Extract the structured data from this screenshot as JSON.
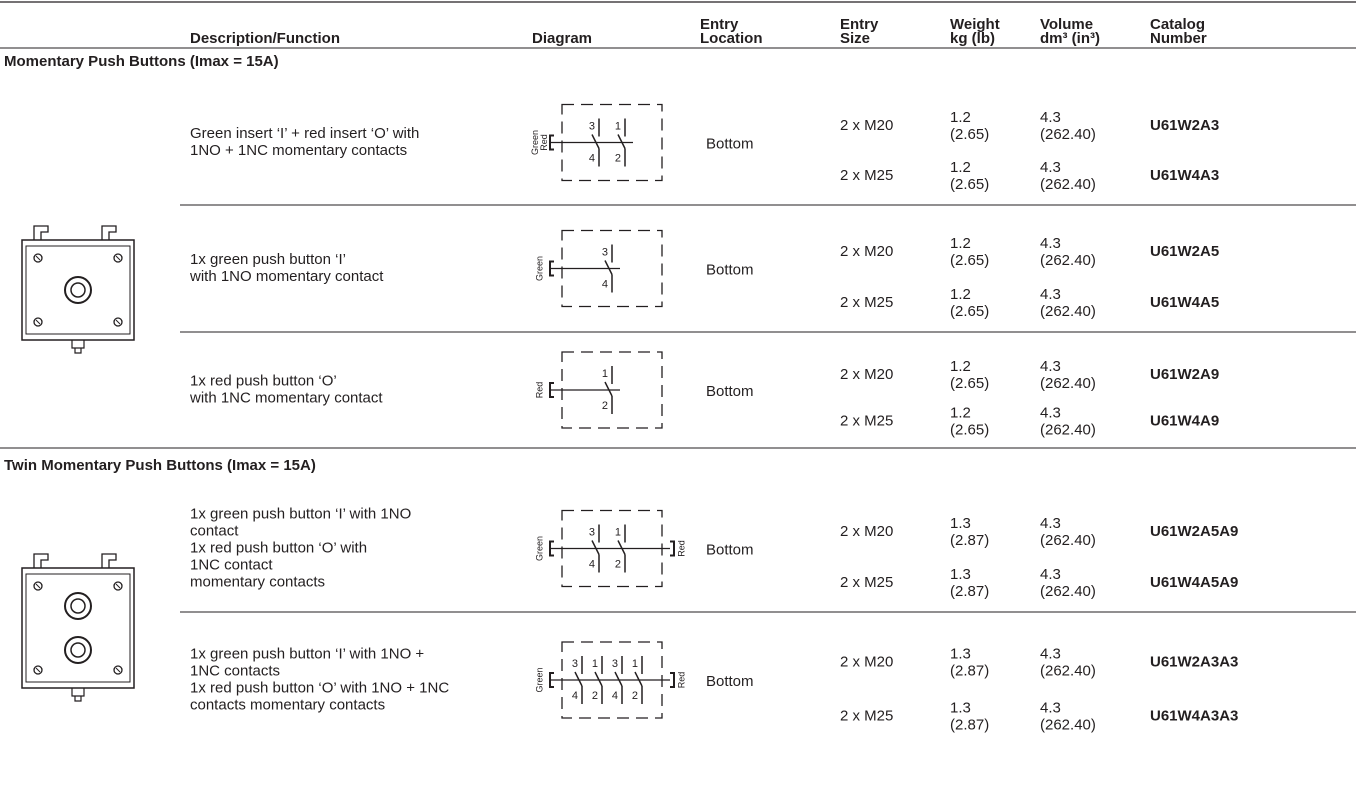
{
  "header": [
    [
      "Description/Function"
    ],
    [
      "Diagram"
    ],
    [
      "Entry",
      "Location"
    ],
    [
      "Entry",
      "Size"
    ],
    [
      "Weight",
      "kg (lb)"
    ],
    [
      "Volume",
      "dm³ (in³)"
    ],
    [
      "Catalog",
      "Number"
    ]
  ],
  "sections": [
    {
      "title": "Momentary Push Buttons (Imax = 15A)",
      "rows": [
        {
          "description": [
            "Green insert ‘I’ + red insert ‘O’ with",
            "1NO + 1NC momentary contacts"
          ],
          "diagram": {
            "left": [
              "Green",
              "Red"
            ],
            "contacts": [
              [
                "3",
                "4"
              ],
              [
                "1",
                "2"
              ]
            ]
          },
          "location": "Bottom",
          "variants": [
            {
              "size": "2 x M20",
              "weight": [
                "1.2",
                "(2.65)"
              ],
              "volume": [
                "4.3",
                "(262.40)"
              ],
              "catalog": "U61W2A3"
            },
            {
              "size": "2 x M25",
              "weight": [
                "1.2",
                "(2.65)"
              ],
              "volume": [
                "4.3",
                "(262.40)"
              ],
              "catalog": "U61W4A3"
            }
          ]
        },
        {
          "description": [
            "1x green push button ‘I’",
            "with 1NO momentary contact"
          ],
          "diagram": {
            "left": [
              "Green"
            ],
            "contacts": [
              [
                "3",
                "4"
              ]
            ]
          },
          "location": "Bottom",
          "variants": [
            {
              "size": "2 x M20",
              "weight": [
                "1.2",
                "(2.65)"
              ],
              "volume": [
                "4.3",
                "(262.40)"
              ],
              "catalog": "U61W2A5"
            },
            {
              "size": "2 x M25",
              "weight": [
                "1.2",
                "(2.65)"
              ],
              "volume": [
                "4.3",
                "(262.40)"
              ],
              "catalog": "U61W4A5"
            }
          ]
        },
        {
          "description": [
            "1x red push button ‘O’",
            "with 1NC momentary contact"
          ],
          "diagram": {
            "left": [
              "Red"
            ],
            "contacts": [
              [
                "1",
                "2"
              ]
            ]
          },
          "location": "Bottom",
          "variants": [
            {
              "size": "2 x M20",
              "weight": [
                "1.2",
                "(2.65)"
              ],
              "volume": [
                "4.3",
                "(262.40)"
              ],
              "catalog": "U61W2A9"
            },
            {
              "size": "2 x M25",
              "weight": [
                "1.2",
                "(2.65)"
              ],
              "volume": [
                "4.3",
                "(262.40)"
              ],
              "catalog": "U61W4A9"
            }
          ]
        }
      ]
    },
    {
      "title": "Twin Momentary Push Buttons (Imax = 15A)",
      "rows": [
        {
          "description": [
            "1x green push button ‘I’ with 1NO",
            "contact",
            "1x red push button ‘O’ with",
            "1NC contact",
            "momentary contacts"
          ],
          "diagram": {
            "left": [
              "Green"
            ],
            "right": [
              "Red"
            ],
            "contacts": [
              [
                "3",
                "4"
              ],
              [
                "1",
                "2"
              ]
            ]
          },
          "location": "Bottom",
          "variants": [
            {
              "size": "2 x M20",
              "weight": [
                "1.3",
                "(2.87)"
              ],
              "volume": [
                "4.3",
                "(262.40)"
              ],
              "catalog": "U61W2A5A9"
            },
            {
              "size": "2 x M25",
              "weight": [
                "1.3",
                "(2.87)"
              ],
              "volume": [
                "4.3",
                "(262.40)"
              ],
              "catalog": "U61W4A5A9"
            }
          ]
        },
        {
          "description": [
            "1x green push button ‘I’ with 1NO +",
            "1NC contacts",
            "1x red push button ‘O’ with 1NO + 1NC",
            "contacts momentary contacts"
          ],
          "diagram": {
            "left": [
              "Green"
            ],
            "right": [
              "Red"
            ],
            "contacts": [
              [
                "3",
                "4"
              ],
              [
                "1",
                "2"
              ],
              [
                "3",
                "4"
              ],
              [
                "1",
                "2"
              ]
            ]
          },
          "location": "Bottom",
          "variants": [
            {
              "size": "2 x M20",
              "weight": [
                "1.3",
                "(2.87)"
              ],
              "volume": [
                "4.3",
                "(262.40)"
              ],
              "catalog": "U61W2A3A3"
            },
            {
              "size": "2 x M25",
              "weight": [
                "1.3",
                "(2.87)"
              ],
              "volume": [
                "4.3",
                "(262.40)"
              ],
              "catalog": "U61W4A3A3"
            }
          ]
        }
      ]
    }
  ]
}
